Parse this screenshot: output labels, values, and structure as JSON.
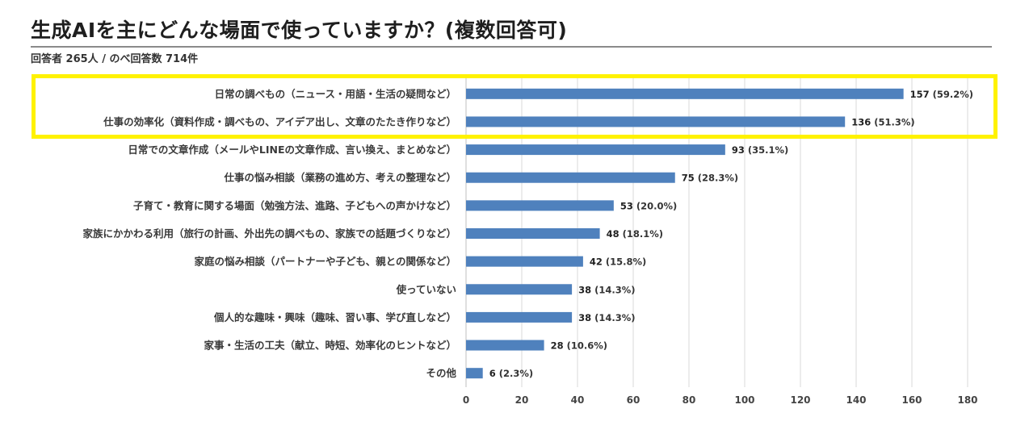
{
  "header": {
    "title": "生成AIを主にどんな場面で使っていますか？(複数回答可)",
    "subtitle": "回答者 265人 / のべ回答数 714件"
  },
  "colors": {
    "bar": "#4f81bd",
    "highlight": "#fff200",
    "rule": "#8a8a8a",
    "grid": "#d9d9d9"
  },
  "chart_data": {
    "type": "bar",
    "orientation": "horizontal",
    "title": "生成AIを主にどんな場面で使っていますか？(複数回答可)",
    "categories": [
      "日常の調べもの（ニュース・用語・生活の疑問など）",
      "仕事の効率化（資料作成・調べもの、アイデア出し、文章のたたき作りなど）",
      "日常での文章作成（メールやLINEの文章作成、言い換え、まとめなど）",
      "仕事の悩み相談（業務の進め方、考えの整理など）",
      "子育て・教育に関する場面（勉強方法、進路、子どもへの声かけなど）",
      "家族にかかわる利用（旅行の計画、外出先の調べもの、家族での話題づくりなど）",
      "家庭の悩み相談（パートナーや子ども、親との関係など）",
      "使っていない",
      "個人的な趣味・興味（趣味、習い事、学び直しなど）",
      "家事・生活の工夫（献立、時短、効率化のヒントなど）",
      "その他"
    ],
    "values": [
      157,
      136,
      93,
      75,
      53,
      48,
      42,
      38,
      38,
      28,
      6
    ],
    "percent_labels": [
      "(59.2%)",
      "(51.3%)",
      "(35.1%)",
      "(28.3%)",
      "(20.0%)",
      "(18.1%)",
      "(15.8%)",
      "(14.3%)",
      "(14.3%)",
      "(10.6%)",
      "(2.3%)"
    ],
    "xlim": [
      0,
      180
    ],
    "xticks": [
      0,
      20,
      40,
      60,
      80,
      100,
      120,
      140,
      160,
      180
    ],
    "grid": true,
    "highlighted_categories": [
      0,
      1
    ]
  }
}
